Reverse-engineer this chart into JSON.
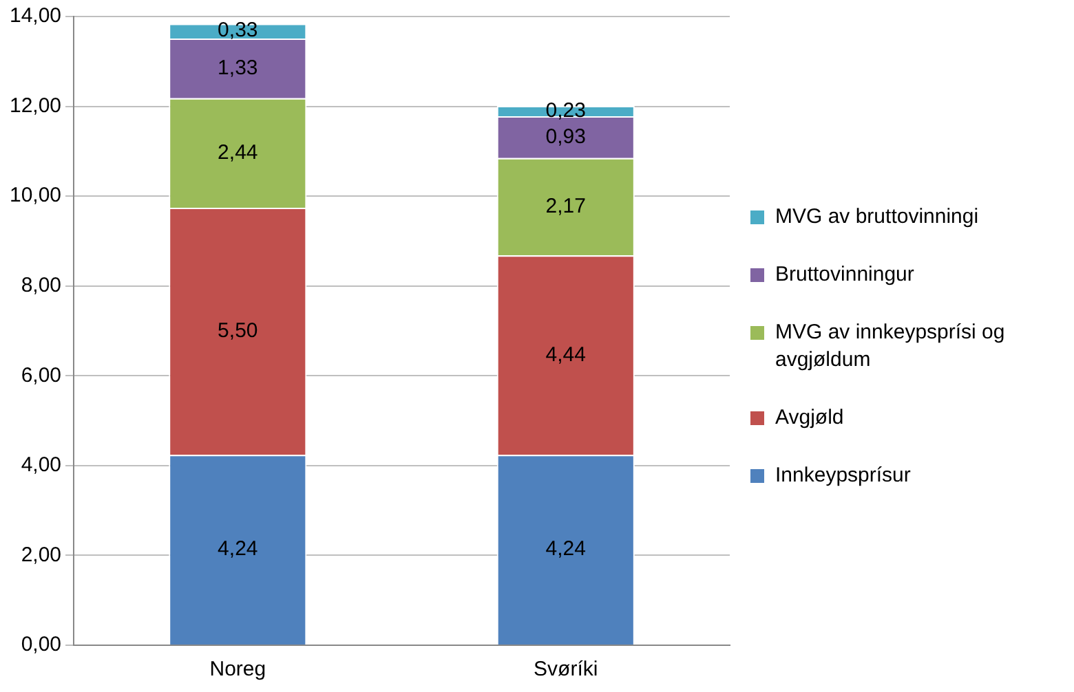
{
  "chart_data": {
    "type": "bar",
    "stacked": true,
    "categories": [
      "Noreg",
      "Svøríki"
    ],
    "series": [
      {
        "name": "Innkeypsprísur",
        "color": "#4f81bd",
        "values": [
          4.24,
          4.24
        ],
        "value_labels": [
          "4,24",
          "4,24"
        ]
      },
      {
        "name": "Avgjøld",
        "color": "#c0504d",
        "values": [
          5.5,
          4.44
        ],
        "value_labels": [
          "5,50",
          "4,44"
        ]
      },
      {
        "name": "MVG av innkeypsprísi og avgjøldum",
        "color": "#9bbb59",
        "values": [
          2.44,
          2.17
        ],
        "value_labels": [
          "2,44",
          "2,17"
        ]
      },
      {
        "name": "Bruttovinningur",
        "color": "#8064a2",
        "values": [
          1.33,
          0.93
        ],
        "value_labels": [
          "1,33",
          "0,93"
        ]
      },
      {
        "name": "MVG av bruttovinningi",
        "color": "#4bacc6",
        "values": [
          0.33,
          0.23
        ],
        "value_labels": [
          "0,33",
          "0,23"
        ]
      }
    ],
    "ylim": [
      0,
      14
    ],
    "yticks": [
      {
        "value": 0,
        "label": "0,00"
      },
      {
        "value": 2,
        "label": "2,00"
      },
      {
        "value": 4,
        "label": "4,00"
      },
      {
        "value": 6,
        "label": "6,00"
      },
      {
        "value": 8,
        "label": "8,00"
      },
      {
        "value": 10,
        "label": "10,00"
      },
      {
        "value": 12,
        "label": "12,00"
      },
      {
        "value": 14,
        "label": "14,00"
      }
    ],
    "grid": "y",
    "legend": "right"
  }
}
